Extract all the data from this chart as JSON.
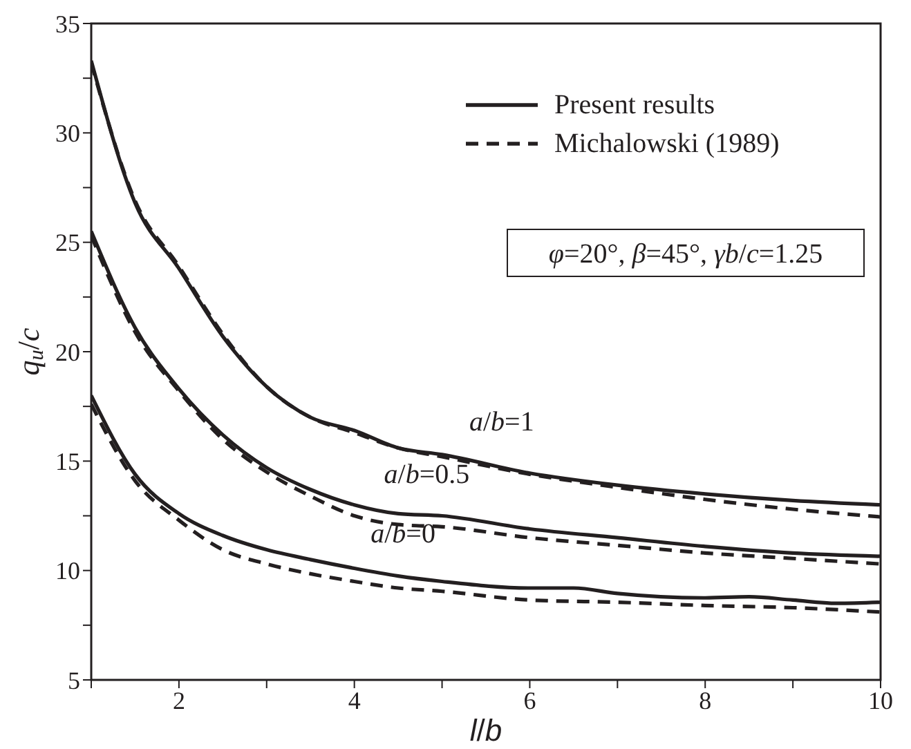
{
  "chart_data": {
    "type": "line",
    "xlabel": "l/b",
    "ylabel": "q$_{u}$/c",
    "xlim": [
      1,
      10
    ],
    "ylim": [
      5,
      35
    ],
    "xticks": [
      {
        "value": 1,
        "label": null
      },
      2,
      {
        "value": 3,
        "label": null
      },
      4,
      {
        "value": 5,
        "label": null
      },
      6,
      {
        "value": 7,
        "label": null
      },
      8,
      {
        "value": 9,
        "label": null
      },
      10
    ],
    "yticks": [
      5,
      {
        "value": 7.5,
        "label": null
      },
      10,
      {
        "value": 12.5,
        "label": null
      },
      15,
      {
        "value": 17.5,
        "label": null
      },
      20,
      {
        "value": 22.5,
        "label": null
      },
      25,
      {
        "value": 27.5,
        "label": null
      },
      30,
      {
        "value": 32.5,
        "label": null
      },
      35
    ],
    "legend": "top right",
    "series": [
      {
        "name": "Present results",
        "color": "#231f20",
        "line_style": "solid",
        "x": [
          1,
          1.5,
          2,
          2.5,
          3,
          3.5,
          4,
          4.5,
          5,
          6,
          7,
          8,
          9,
          10
        ],
        "values": [
          33.3,
          26.8,
          23.8,
          20.7,
          18.4,
          17.0,
          16.4,
          15.6,
          15.3,
          14.45,
          13.9,
          13.5,
          13.2,
          13.0
        ]
      },
      {
        "color": "#231f20",
        "line_style": "solid",
        "x": [
          1,
          1.5,
          2,
          2.5,
          3,
          3.5,
          4,
          4.5,
          5,
          6,
          7,
          8,
          9,
          10
        ],
        "values": [
          25.5,
          21.1,
          18.3,
          16.2,
          14.7,
          13.7,
          13.0,
          12.6,
          12.5,
          11.9,
          11.5,
          11.1,
          10.8,
          10.65
        ]
      },
      {
        "color": "#231f20",
        "line_style": "solid",
        "x": [
          1,
          1.5,
          2,
          2.5,
          3,
          3.5,
          4,
          4.5,
          5,
          6,
          6.5,
          7,
          8,
          8.5,
          9,
          9.5,
          10
        ],
        "values": [
          18.0,
          14.4,
          12.6,
          11.6,
          10.95,
          10.5,
          10.1,
          9.75,
          9.5,
          9.2,
          9.2,
          8.95,
          8.75,
          8.8,
          8.65,
          8.5,
          8.55
        ]
      },
      {
        "name": "Michalowski (1989)",
        "color": "#231f20",
        "line_style": "dashed",
        "x": [
          1,
          1.5,
          2,
          2.5,
          3,
          3.5,
          4,
          4.5,
          5,
          6,
          7,
          8,
          9,
          10
        ],
        "values": [
          33.2,
          26.9,
          23.9,
          20.8,
          18.4,
          17.0,
          16.3,
          15.6,
          15.2,
          14.4,
          13.8,
          13.25,
          12.8,
          12.45
        ]
      },
      {
        "color": "#231f20",
        "line_style": "dashed",
        "x": [
          1,
          1.5,
          2,
          2.5,
          3,
          3.5,
          4,
          4.5,
          5,
          6,
          7,
          8,
          9,
          10
        ],
        "values": [
          25.3,
          20.9,
          18.2,
          16.0,
          14.5,
          13.4,
          12.5,
          12.1,
          12.0,
          11.5,
          11.15,
          10.8,
          10.55,
          10.3
        ]
      },
      {
        "color": "#231f20",
        "line_style": "dashed",
        "x": [
          1,
          1.5,
          2,
          2.5,
          3,
          3.5,
          4,
          4.5,
          5,
          6,
          7,
          8,
          9,
          10
        ],
        "values": [
          17.6,
          14.1,
          12.3,
          10.95,
          10.3,
          9.85,
          9.5,
          9.2,
          9.05,
          8.65,
          8.55,
          8.4,
          8.3,
          8.1
        ]
      }
    ],
    "annotations": [
      "a/b=1",
      "a/b=0.5",
      "a/b=0",
      "φ=20°, β=45°, γb/c=1.25"
    ]
  }
}
